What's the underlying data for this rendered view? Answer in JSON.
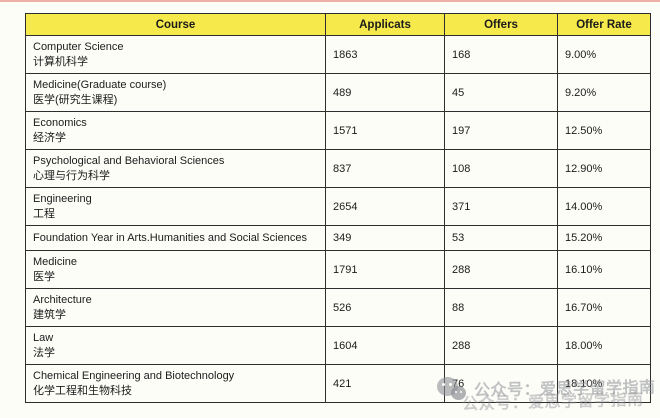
{
  "page": {
    "top_strip_color": "#EDAFA7",
    "background_color": "#FDFDF8"
  },
  "table": {
    "header": {
      "course": "Course",
      "applicats": "Applicats",
      "offers": "Offers",
      "offer_rate": "Offer Rate",
      "bg_color": "#F6E94B",
      "border_color": "#2E2E2E"
    },
    "rows": [
      {
        "course_en": "Computer Science",
        "course_zh": "计算机科学",
        "applicats": "1863",
        "offers": "168",
        "offer_rate": "9.00%"
      },
      {
        "course_en": "Medicine(Graduate course)",
        "course_zh": "医学(研究生课程)",
        "applicats": "489",
        "offers": "45",
        "offer_rate": "9.20%"
      },
      {
        "course_en": "Economics",
        "course_zh": "经济学",
        "applicats": "1571",
        "offers": "197",
        "offer_rate": "12.50%"
      },
      {
        "course_en": "Psychological and Behavioral Sciences",
        "course_zh": "心理与行为科学",
        "applicats": "837",
        "offers": "108",
        "offer_rate": "12.90%"
      },
      {
        "course_en": "Engineering",
        "course_zh": "工程",
        "applicats": "2654",
        "offers": "371",
        "offer_rate": "14.00%"
      },
      {
        "course_en": "Foundation Year in Arts.Humanities and Social Sciences",
        "course_zh": "",
        "applicats": "349",
        "offers": "53",
        "offer_rate": "15.20%"
      },
      {
        "course_en": "Medicine",
        "course_zh": "医学",
        "applicats": "1791",
        "offers": "288",
        "offer_rate": "16.10%"
      },
      {
        "course_en": "Architecture",
        "course_zh": "建筑学",
        "applicats": "526",
        "offers": "88",
        "offer_rate": "16.70%"
      },
      {
        "course_en": "Law",
        "course_zh": "法学",
        "applicats": "1604",
        "offers": "288",
        "offer_rate": "18.00%"
      },
      {
        "course_en": "Chemical Engineering and Biotechnology",
        "course_zh": "化学工程和生物科技",
        "applicats": "421",
        "offers": "76",
        "offer_rate": "18.10%"
      }
    ]
  },
  "watermark": {
    "text": "公众号：爱思学留学指南",
    "icon": "wechat-icon",
    "color": "#8D9095"
  }
}
